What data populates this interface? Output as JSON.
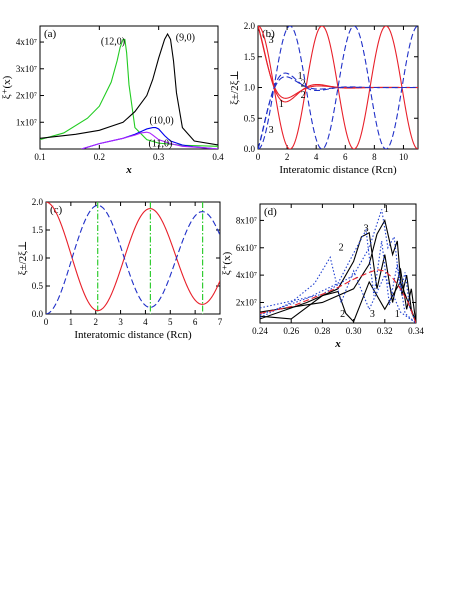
{
  "chart_data": [
    {
      "type": "line",
      "panel_label": "(a)",
      "xlabel": "x",
      "ylabel": "ξ⁺(x)",
      "xlim": [
        0.1,
        0.4
      ],
      "ylim": [
        0,
        46000000.0
      ],
      "x_ticks": [
        0.1,
        0.2,
        0.3,
        0.4
      ],
      "x_tick_labels": [
        "0.1",
        "0.2",
        "0.3",
        "0.4"
      ],
      "y_ticks": [
        10000000.0,
        20000000.0,
        30000000.0,
        40000000.0
      ],
      "y_tick_labels": [
        "1x10⁷",
        "2x10⁷",
        "3x10⁷",
        "4x10⁷"
      ],
      "series": [
        {
          "name": "(12,0)",
          "color": "#22cc22",
          "x": [
            0.1,
            0.14,
            0.18,
            0.2,
            0.22,
            0.23,
            0.235,
            0.24,
            0.243,
            0.246,
            0.25,
            0.26,
            0.28,
            0.3,
            0.34,
            0.4
          ],
          "y": [
            3500000.0,
            6000000.0,
            11500000.0,
            16000000.0,
            25000000.0,
            33000000.0,
            38000000.0,
            41000000.0,
            41000000.0,
            36000000.0,
            24000000.0,
            8000000.0,
            3500000.0,
            2200000.0,
            1400000.0,
            1000000.0
          ]
        },
        {
          "name": "(9,0)",
          "color": "#000000",
          "x": [
            0.1,
            0.16,
            0.2,
            0.24,
            0.26,
            0.28,
            0.29,
            0.3,
            0.31,
            0.315,
            0.32,
            0.325,
            0.33,
            0.34,
            0.36,
            0.4
          ],
          "y": [
            4000000.0,
            5500000.0,
            7000000.0,
            10000000.0,
            14000000.0,
            20000000.0,
            26000000.0,
            34000000.0,
            41000000.0,
            43000000.0,
            41000000.0,
            33000000.0,
            21000000.0,
            8000000.0,
            3000000.0,
            1500000.0
          ]
        },
        {
          "name": "(10,0)",
          "color": "#0000ee",
          "x": [
            0.17,
            0.2,
            0.24,
            0.26,
            0.27,
            0.28,
            0.29,
            0.295,
            0.3,
            0.31,
            0.32,
            0.34,
            0.36,
            0.4
          ],
          "y": [
            0,
            2000000.0,
            4000000.0,
            5500000.0,
            6500000.0,
            7500000.0,
            8000000.0,
            8000000.0,
            7500000.0,
            5000000.0,
            3000000.0,
            1500000.0,
            800000.0,
            0
          ]
        },
        {
          "name": "(11,0)",
          "color": "#aa22ff",
          "x": [
            0.17,
            0.2,
            0.24,
            0.26,
            0.27,
            0.28,
            0.285,
            0.29,
            0.3,
            0.32,
            0.34,
            0.38,
            0.4
          ],
          "y": [
            0,
            2000000.0,
            4000000.0,
            5200000.0,
            6000000.0,
            6300000.0,
            6000000.0,
            5200000.0,
            3500000.0,
            2000000.0,
            1000000.0,
            400000.0,
            0
          ]
        }
      ]
    },
    {
      "type": "line",
      "panel_label": "(b)",
      "xlabel": "Interatomic distance (Rcn)",
      "ylabel": "ξ±/2ξ⊥",
      "xlim": [
        0,
        11
      ],
      "ylim": [
        0,
        2.0
      ],
      "x_ticks": [
        0,
        2,
        4,
        6,
        8,
        10
      ],
      "x_tick_labels": [
        "0",
        "2",
        "4",
        "6",
        "8",
        "10"
      ],
      "y_ticks": [
        0,
        0.5,
        1.0,
        1.5,
        2.0
      ],
      "y_tick_labels": [
        "0.0",
        "0.5",
        "1.0",
        "1.5",
        "2.0"
      ],
      "curve_labels": [
        {
          "text": "3",
          "x": 0.9,
          "y": 1.72
        },
        {
          "text": "1",
          "x": 2.9,
          "y": 1.14
        },
        {
          "text": "2",
          "x": 3.1,
          "y": 1.02
        },
        {
          "text": "2",
          "x": 3.1,
          "y": 0.83
        },
        {
          "text": "1",
          "x": 1.6,
          "y": 0.68
        },
        {
          "text": "3",
          "x": 0.9,
          "y": 0.26
        }
      ],
      "series": [
        {
          "name": "3",
          "color": "#e8202a",
          "style": "solid",
          "decay_length": null,
          "period": 4.4
        },
        {
          "name": "3",
          "color": "#2030c8",
          "style": "dash",
          "decay_length": null,
          "period": 4.4
        },
        {
          "name": "2",
          "color": "#e8202a",
          "style": "solid",
          "decay_length": 1.4,
          "period": 4.4
        },
        {
          "name": "2",
          "color": "#2030c8",
          "style": "dash",
          "decay_length": 1.4,
          "period": 4.4
        },
        {
          "name": "1",
          "color": "#e8202a",
          "style": "solid",
          "decay_length": 1.2,
          "period": 4.6
        },
        {
          "name": "1",
          "color": "#2030c8",
          "style": "dash",
          "decay_length": 1.2,
          "period": 4.6
        }
      ]
    },
    {
      "type": "line",
      "panel_label": "(c)",
      "xlabel": "Interatomic distance (Rcn)",
      "ylabel": "ξ±/2ξ⊥",
      "xlim": [
        0,
        7
      ],
      "ylim": [
        0,
        2.0
      ],
      "x_ticks": [
        0,
        1,
        2,
        3,
        4,
        5,
        6,
        7
      ],
      "x_tick_labels": [
        "0",
        "1",
        "2",
        "3",
        "4",
        "5",
        "6",
        "7"
      ],
      "y_ticks": [
        0,
        0.5,
        1.0,
        1.5,
        2.0
      ],
      "y_tick_labels": [
        "0.0",
        "0.5",
        "1.0",
        "1.5",
        "2.0"
      ],
      "vlines": [
        2.08,
        4.2,
        6.3
      ],
      "vline_color": "#33cc33",
      "series": [
        {
          "color": "#e8202a",
          "style": "solid",
          "period": 4.2,
          "amp_decay": 0.03
        },
        {
          "color": "#2030c8",
          "style": "dash",
          "period": 4.2,
          "amp_decay": 0.03
        }
      ]
    },
    {
      "type": "line",
      "panel_label": "(d)",
      "xlabel": "x",
      "ylabel": "ξ⁺(x)",
      "xlim": [
        0.24,
        0.34
      ],
      "ylim": [
        5000000.0,
        92000000.0
      ],
      "x_ticks": [
        0.24,
        0.26,
        0.28,
        0.3,
        0.32,
        0.34
      ],
      "x_tick_labels": [
        "0.24",
        "0.26",
        "0.28",
        "0.30",
        "0.32",
        "0.34"
      ],
      "y_ticks": [
        20000000.0,
        40000000.0,
        60000000.0,
        80000000.0
      ],
      "y_tick_labels": [
        "2x10⁷",
        "4x10⁷",
        "6x10⁷",
        "8x10⁷"
      ],
      "curve_labels": [
        {
          "text": "1",
          "x": 0.321,
          "y": 86000000.0
        },
        {
          "text": "3",
          "x": 0.308,
          "y": 72000000.0
        },
        {
          "text": "2",
          "x": 0.292,
          "y": 58000000.0
        },
        {
          "text": "2",
          "x": 0.293,
          "y": 9500000.0
        },
        {
          "text": "3",
          "x": 0.312,
          "y": 9500000.0
        },
        {
          "text": "1",
          "x": 0.328,
          "y": 9500000.0
        }
      ],
      "series": [
        {
          "name": "1",
          "color": "#000000",
          "style": "solid",
          "x": [
            0.24,
            0.28,
            0.3,
            0.31,
            0.315,
            0.32,
            0.325,
            0.328,
            0.331,
            0.334,
            0.337,
            0.34
          ],
          "y": [
            13000000.0,
            20000000.0,
            30000000.0,
            48000000.0,
            70000000.0,
            80000000.0,
            55000000.0,
            65000000.0,
            25000000.0,
            40000000.0,
            15000000.0,
            5000000.0
          ]
        },
        {
          "name": "3",
          "color": "#000000",
          "style": "solid",
          "x": [
            0.24,
            0.27,
            0.29,
            0.3,
            0.305,
            0.31,
            0.315,
            0.32,
            0.325,
            0.33,
            0.334,
            0.337,
            0.34
          ],
          "y": [
            8000000.0,
            20000000.0,
            30000000.0,
            50000000.0,
            68000000.0,
            71000000.0,
            30000000.0,
            55000000.0,
            20000000.0,
            45000000.0,
            15000000.0,
            30000000.0,
            5000000.0
          ]
        },
        {
          "name": "2",
          "color": "#000000",
          "style": "solid",
          "x": [
            0.24,
            0.26,
            0.28,
            0.29,
            0.295,
            0.3,
            0.31,
            0.32,
            0.33,
            0.34
          ],
          "y": [
            10000000.0,
            8000000.0,
            25000000.0,
            28000000.0,
            12000000.0,
            6000000.0,
            35000000.0,
            15000000.0,
            35000000.0,
            5000000.0
          ]
        },
        {
          "name": "1",
          "color": "#2040d0",
          "style": "dot",
          "x": [
            0.24,
            0.28,
            0.3,
            0.31,
            0.318,
            0.322,
            0.326,
            0.33,
            0.333,
            0.336,
            0.34
          ],
          "y": [
            16000000.0,
            26000000.0,
            40000000.0,
            60000000.0,
            88000000.0,
            60000000.0,
            68000000.0,
            28000000.0,
            42000000.0,
            16000000.0,
            5000000.0
          ]
        },
        {
          "name": "3",
          "color": "#2040d0",
          "style": "dot",
          "x": [
            0.24,
            0.27,
            0.29,
            0.3,
            0.308,
            0.313,
            0.318,
            0.323,
            0.328,
            0.333,
            0.34
          ],
          "y": [
            11000000.0,
            23000000.0,
            34000000.0,
            56000000.0,
            73000000.0,
            25000000.0,
            65000000.0,
            18000000.0,
            48000000.0,
            12000000.0,
            5000000.0
          ]
        },
        {
          "name": "2",
          "color": "#2040d0",
          "style": "dot",
          "x": [
            0.24,
            0.26,
            0.275,
            0.285,
            0.292,
            0.3,
            0.31,
            0.32,
            0.33,
            0.34
          ],
          "y": [
            9000000.0,
            20000000.0,
            34000000.0,
            53000000.0,
            20000000.0,
            43000000.0,
            15000000.0,
            40000000.0,
            13000000.0,
            5000000.0
          ]
        },
        {
          "name": "",
          "color": "#e8202a",
          "style": "dash",
          "x": [
            0.24,
            0.26,
            0.28,
            0.29,
            0.3,
            0.31,
            0.315,
            0.32,
            0.325,
            0.33,
            0.335,
            0.34
          ],
          "y": [
            12000000.0,
            17000000.0,
            26000000.0,
            31000000.0,
            37000000.0,
            42000000.0,
            44000000.0,
            43000000.0,
            38000000.0,
            30000000.0,
            20000000.0,
            5000000.0
          ]
        }
      ]
    }
  ]
}
